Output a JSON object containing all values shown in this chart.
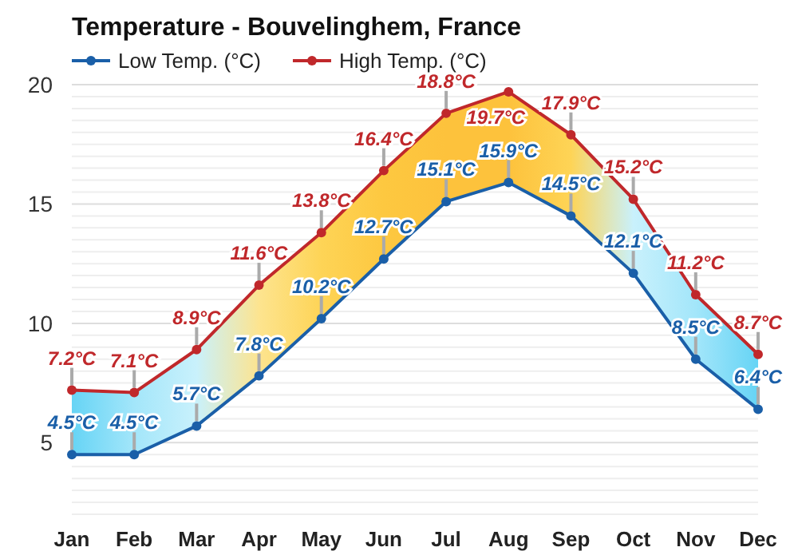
{
  "chart_data": {
    "type": "line",
    "title": "Temperature - Bouvelinghem, France",
    "categories": [
      "Jan",
      "Feb",
      "Mar",
      "Apr",
      "May",
      "Jun",
      "Jul",
      "Aug",
      "Sep",
      "Oct",
      "Nov",
      "Dec"
    ],
    "series": [
      {
        "name": "Low Temp. (°C)",
        "color": "#1a5fa8",
        "values": [
          4.5,
          4.5,
          5.7,
          7.8,
          10.2,
          12.7,
          15.1,
          15.9,
          14.5,
          12.1,
          8.5,
          6.4
        ],
        "value_labels": [
          "4.5°C",
          "4.5°C",
          "5.7°C",
          "7.8°C",
          "10.2°C",
          "12.7°C",
          "15.1°C",
          "15.9°C",
          "14.5°C",
          "12.1°C",
          "8.5°C",
          "6.4°C"
        ]
      },
      {
        "name": "High Temp. (°C)",
        "color": "#c0282b",
        "values": [
          7.2,
          7.1,
          8.9,
          11.6,
          13.8,
          16.4,
          18.8,
          19.7,
          17.9,
          15.2,
          11.2,
          8.7
        ],
        "value_labels": [
          "7.2°C",
          "7.1°C",
          "8.9°C",
          "11.6°C",
          "13.8°C",
          "16.4°C",
          "18.8°C",
          "19.7°C",
          "17.9°C",
          "15.2°C",
          "11.2°C",
          "8.7°C"
        ],
        "lower": [
          4.5,
          4.5,
          5.7,
          7.8,
          10.2,
          12.7,
          15.1,
          15.9,
          14.5,
          12.1,
          8.5,
          6.4
        ],
        "upper": [
          7.2,
          7.1,
          8.9,
          11.6,
          13.8,
          16.4,
          18.8,
          19.7,
          17.9,
          15.2,
          11.2,
          8.7
        ],
        "colors": [
          "#66d4f5",
          "#a3e6fa",
          "#c9f1fc",
          "#fde48f",
          "#fed456",
          "#fdc840",
          "#fdc23c",
          "#fdc23c",
          "#fed456",
          "#c9f1fc",
          "#a3e6fa",
          "#66d4f5"
        ]
      }
    ],
    "ylim": [
      2,
      20
    ],
    "yticks": [
      {
        "value": 2,
        "label": null
      },
      {
        "value": 2.5,
        "label": null
      },
      {
        "value": 3,
        "label": null
      },
      {
        "value": 3.5,
        "label": null
      },
      {
        "value": 4,
        "label": null
      },
      {
        "value": 4.5,
        "label": null
      },
      5,
      {
        "value": 5.5,
        "label": null
      },
      {
        "value": 6,
        "label": null
      },
      {
        "value": 6.5,
        "label": null
      },
      {
        "value": 7,
        "label": null
      },
      {
        "value": 7.5,
        "label": null
      },
      {
        "value": 8,
        "label": null
      },
      {
        "value": 8.5,
        "label": null
      },
      {
        "value": 9,
        "label": null
      },
      {
        "value": 9.5,
        "label": null
      },
      10,
      {
        "value": 10.5,
        "label": null
      },
      {
        "value": 11,
        "label": null
      },
      {
        "value": 11.5,
        "label": null
      },
      {
        "value": 12,
        "label": null
      },
      {
        "value": 12.5,
        "label": null
      },
      {
        "value": 13,
        "label": null
      },
      {
        "value": 13.5,
        "label": null
      },
      {
        "value": 14,
        "label": null
      },
      {
        "value": 14.5,
        "label": null
      },
      15,
      {
        "value": 15.5,
        "label": null
      },
      {
        "value": 16,
        "label": null
      },
      {
        "value": 16.5,
        "label": null
      },
      {
        "value": 17,
        "label": null
      },
      {
        "value": 17.5,
        "label": null
      },
      {
        "value": 18,
        "label": null
      },
      {
        "value": 18.5,
        "label": null
      },
      {
        "value": 19,
        "label": null
      },
      {
        "value": 19.5,
        "label": null
      },
      20
    ],
    "grid": "y",
    "legend": "top left",
    "marker": "circle",
    "line_style": "solid"
  }
}
